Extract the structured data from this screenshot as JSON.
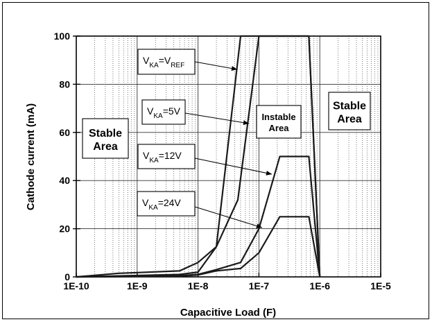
{
  "chart_data": {
    "type": "line",
    "title": "",
    "xlabel": "Capacitive Load (F)",
    "ylabel": "Cathode current (mA)",
    "xscale": "log",
    "xlim": [
      1e-10,
      1e-05
    ],
    "ylim": [
      0,
      100
    ],
    "xticks": [
      1e-10,
      1e-09,
      1e-08,
      1e-07,
      1e-06,
      1e-05
    ],
    "xtick_labels": [
      "1E-10",
      "1E-9",
      "1E-8",
      "1E-7",
      "1E-6",
      "1E-5"
    ],
    "yticks": [
      0,
      20,
      40,
      60,
      80,
      100
    ],
    "ytick_labels": [
      "0",
      "20",
      "40",
      "60",
      "80",
      "100"
    ],
    "grid": true,
    "series": [
      {
        "label_main": "V",
        "label_sub1": "KA",
        "label_mid": "=V",
        "label_sub2": "REF",
        "x": [
          1e-10,
          5e-10,
          1e-09,
          5e-09,
          1e-08,
          2e-08,
          5e-08,
          6.6e-07,
          1e-06
        ],
        "y": [
          0,
          1.5,
          1.8,
          2.5,
          6,
          12.5,
          100,
          100,
          0
        ]
      },
      {
        "label_main": "V",
        "label_sub1": "KA",
        "label_mid": "=5V",
        "label_sub2": "",
        "x": [
          1e-10,
          5e-09,
          1e-08,
          2e-08,
          4.5e-08,
          1e-07,
          6.6e-07,
          1e-06
        ],
        "y": [
          0,
          1,
          2,
          12.5,
          32,
          100,
          100,
          0
        ]
      },
      {
        "label_main": "V",
        "label_sub1": "KA",
        "label_mid": "=12V",
        "label_sub2": "",
        "x": [
          1e-10,
          5e-09,
          1e-08,
          2e-08,
          5e-08,
          1e-07,
          2.2e-07,
          6.6e-07,
          1e-06
        ],
        "y": [
          0,
          0.5,
          1,
          3,
          6,
          20,
          50,
          50,
          0
        ]
      },
      {
        "label_main": "V",
        "label_sub1": "KA",
        "label_mid": "=24V",
        "label_sub2": "",
        "x": [
          1e-10,
          5e-09,
          1e-08,
          2e-08,
          5e-08,
          1e-07,
          2.2e-07,
          6.6e-07,
          1e-06
        ],
        "y": [
          0,
          0.3,
          0.8,
          2.5,
          3.5,
          10,
          25,
          25,
          0
        ]
      }
    ],
    "annotations": {
      "stable_left": [
        "Stable",
        "Area"
      ],
      "instable": [
        "Instable",
        "Area"
      ],
      "stable_right": [
        "Stable",
        "Area"
      ]
    }
  }
}
